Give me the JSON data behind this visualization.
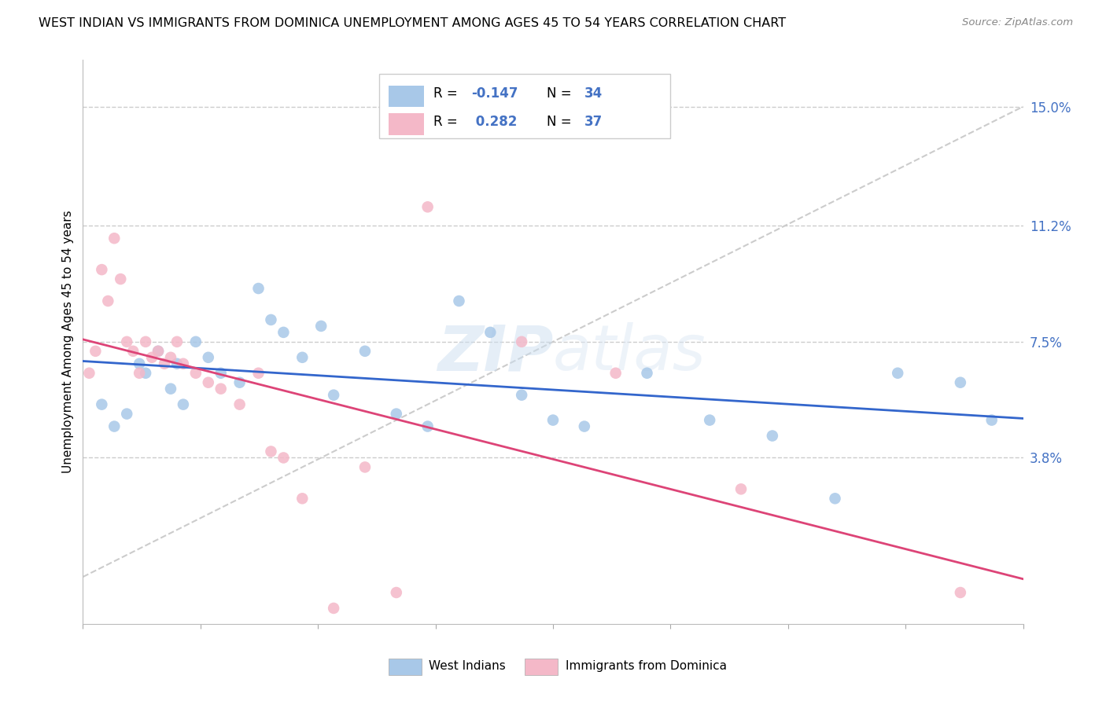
{
  "title": "WEST INDIAN VS IMMIGRANTS FROM DOMINICA UNEMPLOYMENT AMONG AGES 45 TO 54 YEARS CORRELATION CHART",
  "source": "Source: ZipAtlas.com",
  "ylabel": "Unemployment Among Ages 45 to 54 years",
  "ytick_labels": [
    "3.8%",
    "7.5%",
    "11.2%",
    "15.0%"
  ],
  "ytick_values": [
    3.8,
    7.5,
    11.2,
    15.0
  ],
  "xmin": 0.0,
  "xmax": 15.0,
  "ymin": -1.5,
  "ymax": 16.5,
  "legend_blue_label": "West Indians",
  "legend_pink_label": "Immigrants from Dominica",
  "blue_color": "#a8c8e8",
  "pink_color": "#f4b8c8",
  "blue_line_color": "#3366cc",
  "pink_line_color": "#dd4477",
  "dash_line_color": "#cccccc",
  "axis_color": "#bbbbbb",
  "right_label_color": "#4472c4",
  "blue_points_x": [
    0.3,
    0.5,
    0.7,
    0.9,
    1.0,
    1.2,
    1.4,
    1.5,
    1.6,
    1.8,
    2.0,
    2.2,
    2.5,
    2.8,
    3.0,
    3.2,
    3.5,
    3.8,
    4.0,
    4.5,
    5.0,
    5.5,
    6.0,
    6.5,
    7.0,
    7.5,
    8.0,
    9.0,
    10.0,
    11.0,
    12.0,
    13.0,
    14.0,
    14.5
  ],
  "blue_points_y": [
    5.5,
    4.8,
    5.2,
    6.8,
    6.5,
    7.2,
    6.0,
    6.8,
    5.5,
    7.5,
    7.0,
    6.5,
    6.2,
    9.2,
    8.2,
    7.8,
    7.0,
    8.0,
    5.8,
    7.2,
    5.2,
    4.8,
    8.8,
    7.8,
    5.8,
    5.0,
    4.8,
    6.5,
    5.0,
    4.5,
    2.5,
    6.5,
    6.2,
    5.0
  ],
  "pink_points_x": [
    0.1,
    0.2,
    0.3,
    0.4,
    0.5,
    0.6,
    0.7,
    0.8,
    0.9,
    1.0,
    1.1,
    1.2,
    1.3,
    1.4,
    1.5,
    1.6,
    1.8,
    2.0,
    2.2,
    2.5,
    2.8,
    3.0,
    3.2,
    3.5,
    4.0,
    4.5,
    5.0,
    5.5,
    7.0,
    8.5,
    10.5,
    14.0
  ],
  "pink_points_y": [
    6.5,
    7.2,
    9.8,
    8.8,
    10.8,
    9.5,
    7.5,
    7.2,
    6.5,
    7.5,
    7.0,
    7.2,
    6.8,
    7.0,
    7.5,
    6.8,
    6.5,
    6.2,
    6.0,
    5.5,
    6.5,
    4.0,
    3.8,
    2.5,
    -1.0,
    3.5,
    -0.5,
    11.8,
    7.5,
    6.5,
    2.8,
    -0.5
  ],
  "watermark_zip": "ZIP",
  "watermark_atlas": "atlas"
}
